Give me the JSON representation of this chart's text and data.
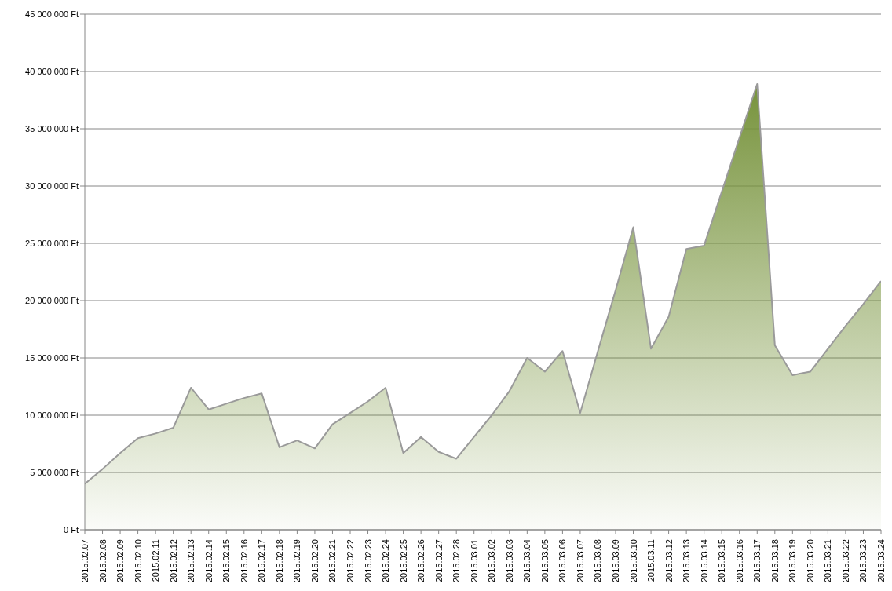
{
  "chart_data": {
    "type": "area",
    "categories": [
      "2015.02.07",
      "2015.02.08",
      "2015.02.09",
      "2015.02.10",
      "2015.02.11",
      "2015.02.12",
      "2015.02.13",
      "2015.02.14",
      "2015.02.15",
      "2015.02.16",
      "2015.02.17",
      "2015.02.18",
      "2015.02.19",
      "2015.02.20",
      "2015.02.21",
      "2015.02.22",
      "2015.02.23",
      "2015.02.24",
      "2015.02.25",
      "2015.02.26",
      "2015.02.27",
      "2015.02.28",
      "2015.03.01",
      "2015.03.02",
      "2015.03.03",
      "2015.03.04",
      "2015.03.05",
      "2015.03.06",
      "2015.03.07",
      "2015.03.08",
      "2015.03.09",
      "2015.03.10",
      "2015.03.11",
      "2015.03.12",
      "2015.03.13",
      "2015.03.14",
      "2015.03.15",
      "2015.03.16",
      "2015.03.17",
      "2015.03.18",
      "2015.03.19",
      "2015.03.20",
      "2015.03.21",
      "2015.03.22",
      "2015.03.23",
      "2015.03.24"
    ],
    "values": [
      4000000,
      5300000,
      6700000,
      8000000,
      8400000,
      8900000,
      12400000,
      10500000,
      11000000,
      11500000,
      11900000,
      7200000,
      7800000,
      7100000,
      9200000,
      10200000,
      11200000,
      12400000,
      6700000,
      8100000,
      6800000,
      6200000,
      8100000,
      10000000,
      12100000,
      15000000,
      13800000,
      15600000,
      10200000,
      15600000,
      20900000,
      26400000,
      15800000,
      18600000,
      24500000,
      24800000,
      29500000,
      34200000,
      38900000,
      16100000,
      13500000,
      13800000,
      15800000,
      17800000,
      19700000,
      21700000
    ],
    "color": "#77933c",
    "ylim": [
      0,
      45000000
    ],
    "yticks": [
      {
        "value": 0,
        "label": "0 Ft"
      },
      {
        "value": 5000000,
        "label": "5 000 000 Ft"
      },
      {
        "value": 10000000,
        "label": "10 000 000 Ft"
      },
      {
        "value": 15000000,
        "label": "15 000 000 Ft"
      },
      {
        "value": 20000000,
        "label": "20 000 000 Ft"
      },
      {
        "value": 25000000,
        "label": "25 000 000 Ft"
      },
      {
        "value": 30000000,
        "label": "30 000 000 Ft"
      },
      {
        "value": 35000000,
        "label": "35 000 000 Ft"
      },
      {
        "value": 40000000,
        "label": "40 000 000 Ft"
      },
      {
        "value": 45000000,
        "label": "45 000 000 Ft"
      }
    ],
    "grid": "y"
  }
}
